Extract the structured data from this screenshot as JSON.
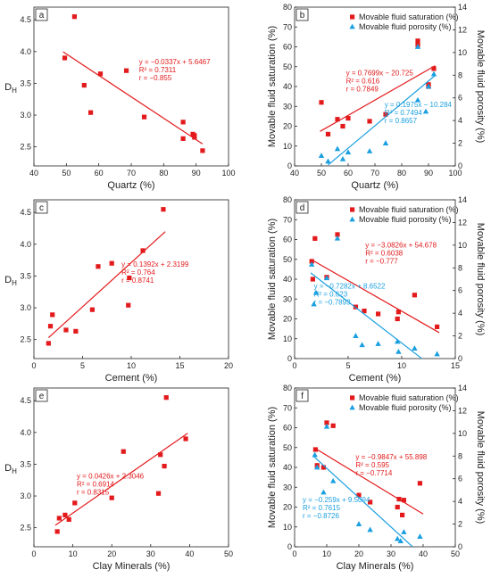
{
  "colors": {
    "red": "#e31a1c",
    "blue": "#1a9fe0"
  },
  "chart_data": [
    {
      "id": "a",
      "type": "scatter",
      "panel_label": "a",
      "xlabel": "Quartz (%)",
      "ylabel": "D",
      "ylabel_sub": "H",
      "xlim": [
        40,
        100
      ],
      "ylim": [
        2.2,
        4.7
      ],
      "xticks": [
        40,
        50,
        60,
        70,
        80,
        90,
        100
      ],
      "yticks": [
        2.5,
        3.0,
        3.5,
        4.0,
        4.5
      ],
      "series": [
        {
          "marker": "square",
          "color": "#e31a1c",
          "points": [
            [
              49.5,
              3.9
            ],
            [
              52.5,
              4.55
            ],
            [
              55.5,
              3.47
            ],
            [
              57.5,
              3.04
            ],
            [
              60.5,
              3.65
            ],
            [
              68.5,
              3.7
            ],
            [
              74,
              2.97
            ],
            [
              86,
              2.89
            ],
            [
              86,
              2.63
            ],
            [
              89,
              2.7
            ],
            [
              89.5,
              2.68
            ],
            [
              89.5,
              2.65
            ],
            [
              92,
              2.44
            ]
          ],
          "fit": {
            "x": [
              49,
              92
            ],
            "slope": -0.0337,
            "intercept": 5.6467
          },
          "equation": [
            "y = −0.0337x + 5.6467",
            "R² = 0.7311",
            "r = −0.855"
          ]
        }
      ]
    },
    {
      "id": "b",
      "type": "scatter",
      "panel_label": "b",
      "xlabel": "Quartz (%)",
      "ylabel": "Movable fluid saturation (%)",
      "y2label": "Movable fluid porosity (%)",
      "xlim": [
        40,
        100
      ],
      "ylim": [
        0,
        80
      ],
      "y2lim": [
        0,
        14
      ],
      "xticks": [
        40,
        50,
        60,
        70,
        80,
        90,
        100
      ],
      "yticks": [
        0,
        10,
        20,
        30,
        40,
        50,
        60,
        70,
        80
      ],
      "y2ticks": [
        0,
        2,
        4,
        6,
        8,
        10,
        12,
        14
      ],
      "legend": [
        "Movable fluid saturation (%)",
        "Movable fluid porosity (%)"
      ],
      "series": [
        {
          "name": "Movable fluid saturation (%)",
          "marker": "square",
          "color": "#e31a1c",
          "axis": "y",
          "points": [
            [
              50,
              32
            ],
            [
              52.5,
              16
            ],
            [
              56,
              23.5
            ],
            [
              58,
              20
            ],
            [
              60,
              24
            ],
            [
              68,
              22.5
            ],
            [
              74,
              26
            ],
            [
              86,
              63
            ],
            [
              86,
              61
            ],
            [
              90,
              41
            ],
            [
              90,
              40
            ],
            [
              92,
              49
            ]
          ],
          "fit": {
            "x": [
              49.5,
              92.5
            ],
            "slope": 0.7699,
            "intercept": -20.725
          },
          "equation": [
            "y = 0.7699x − 20.725",
            "R² = 0.616",
            "r = 0.7849"
          ]
        },
        {
          "name": "Movable fluid porosity (%)",
          "marker": "triangle",
          "color": "#1a9fe0",
          "axis": "y2",
          "points": [
            [
              50,
              0.9
            ],
            [
              52.5,
              0.4
            ],
            [
              56,
              1.5
            ],
            [
              58,
              0.6
            ],
            [
              60,
              1.2
            ],
            [
              68,
              1.3
            ],
            [
              74,
              2
            ],
            [
              86,
              5.8
            ],
            [
              86,
              10.5
            ],
            [
              89,
              4.8
            ],
            [
              90,
              7
            ],
            [
              92,
              8.1
            ]
          ],
          "fit": {
            "x": [
              52.5,
              92.5
            ],
            "slope": 0.1975,
            "intercept": -10.284
          },
          "equation": [
            "y = 0.1975x − 10.284",
            "R² = 0.7494",
            "r = 0.8657"
          ]
        }
      ]
    },
    {
      "id": "c",
      "type": "scatter",
      "panel_label": "c",
      "xlabel": "Cement (%)",
      "ylabel": "D",
      "ylabel_sub": "H",
      "xlim": [
        0,
        20
      ],
      "ylim": [
        2.2,
        4.7
      ],
      "xticks": [
        0,
        5,
        10,
        15,
        20
      ],
      "yticks": [
        2.5,
        3.0,
        3.5,
        4.0,
        4.5
      ],
      "series": [
        {
          "marker": "square",
          "color": "#e31a1c",
          "points": [
            [
              1.5,
              2.44
            ],
            [
              1.7,
              2.71
            ],
            [
              1.9,
              2.89
            ],
            [
              3.3,
              2.65
            ],
            [
              4.3,
              2.63
            ],
            [
              6,
              2.97
            ],
            [
              6.6,
              3.65
            ],
            [
              8,
              3.7
            ],
            [
              9.7,
              3.04
            ],
            [
              9.8,
              3.47
            ],
            [
              11.2,
              3.9
            ],
            [
              13.3,
              4.55
            ]
          ],
          "fit": {
            "x": [
              1.5,
              13.5
            ],
            "slope": 0.1392,
            "intercept": 2.3199
          },
          "equation": [
            "y = 0.1392x + 2.3199",
            "R² = 0.764",
            "r = 0.8741"
          ]
        }
      ]
    },
    {
      "id": "d",
      "type": "scatter",
      "panel_label": "d",
      "xlabel": "Cement (%)",
      "ylabel": "Movable fluid saturation (%)",
      "y2label": "Movable fluid porosity (%)",
      "xlim": [
        0,
        15
      ],
      "ylim": [
        0,
        80
      ],
      "y2lim": [
        0,
        14
      ],
      "xticks": [
        0,
        5,
        10,
        15
      ],
      "yticks": [
        0,
        10,
        20,
        30,
        40,
        50,
        60,
        70,
        80
      ],
      "y2ticks": [
        0,
        2,
        4,
        6,
        8,
        10,
        12,
        14
      ],
      "legend": [
        "Movable fluid saturation (%)",
        "Movable fluid porosity (%)"
      ],
      "series": [
        {
          "name": "Movable fluid saturation (%)",
          "marker": "square",
          "color": "#e31a1c",
          "axis": "y",
          "points": [
            [
              1.6,
              49
            ],
            [
              1.7,
              40
            ],
            [
              1.9,
              60.5
            ],
            [
              3,
              41
            ],
            [
              4,
              62.5
            ],
            [
              5.7,
              26
            ],
            [
              6.5,
              24
            ],
            [
              7.8,
              22.5
            ],
            [
              9.6,
              20
            ],
            [
              9.7,
              23.5
            ],
            [
              11.2,
              32
            ],
            [
              13.3,
              16
            ]
          ],
          "fit": {
            "x": [
              1.5,
              13.5
            ],
            "slope": -3.0826,
            "intercept": 54.678
          },
          "equation": [
            "y = −3.0826x + 54.678",
            "R² = 0.6038",
            "r = −0.777"
          ]
        },
        {
          "name": "Movable fluid porosity (%)",
          "marker": "triangle",
          "color": "#1a9fe0",
          "axis": "y2",
          "points": [
            [
              1.6,
              8.3
            ],
            [
              1.8,
              4.8
            ],
            [
              2,
              5.8
            ],
            [
              3,
              7.1
            ],
            [
              4,
              10.6
            ],
            [
              5.7,
              2
            ],
            [
              6.3,
              1.2
            ],
            [
              7.8,
              1.3
            ],
            [
              9.6,
              1.5
            ],
            [
              9.7,
              0.6
            ],
            [
              11.2,
              0.9
            ],
            [
              13.3,
              0.4
            ]
          ],
          "fit": {
            "x": [
              1.5,
              11.9
            ],
            "slope": -0.7282,
            "intercept": 8.6522
          },
          "equation": [
            "y = −0.7282x + 8.6522",
            "R² = 0.623",
            "r = −0.7893"
          ]
        }
      ]
    },
    {
      "id": "e",
      "type": "scatter",
      "panel_label": "e",
      "xlabel": "Clay Minerals (%)",
      "ylabel": "D",
      "ylabel_sub": "H",
      "xlim": [
        0,
        50
      ],
      "ylim": [
        2.2,
        4.7
      ],
      "xticks": [
        0,
        10,
        20,
        30,
        40,
        50
      ],
      "yticks": [
        2.5,
        3.0,
        3.5,
        4.0,
        4.5
      ],
      "series": [
        {
          "marker": "square",
          "color": "#e31a1c",
          "points": [
            [
              6,
              2.44
            ],
            [
              6.5,
              2.65
            ],
            [
              8,
              2.7
            ],
            [
              9,
              2.63
            ],
            [
              10.5,
              2.89
            ],
            [
              20,
              2.97
            ],
            [
              23,
              3.7
            ],
            [
              32,
              3.04
            ],
            [
              32.5,
              3.65
            ],
            [
              33.5,
              3.47
            ],
            [
              34,
              4.55
            ],
            [
              39,
              3.9
            ]
          ],
          "fit": {
            "x": [
              5.5,
              39.5
            ],
            "slope": 0.0426,
            "intercept": 2.3046
          },
          "equation": [
            "y = 0.0426x + 2.3046",
            "R² = 0.6914",
            "r = 0.8315"
          ]
        }
      ]
    },
    {
      "id": "f",
      "type": "scatter",
      "panel_label": "f",
      "xlabel": "Clay Minerals (%)",
      "ylabel": "Movable fluid saturation (%)",
      "y2label": "Movable fluid porosity (%)",
      "xlim": [
        0,
        50
      ],
      "ylim": [
        0,
        80
      ],
      "y2lim": [
        0,
        14
      ],
      "xticks": [
        0,
        10,
        20,
        30,
        40,
        50
      ],
      "yticks": [
        0,
        10,
        20,
        30,
        40,
        50,
        60,
        70,
        80
      ],
      "y2ticks": [
        0,
        2,
        4,
        6,
        8,
        10,
        12,
        14
      ],
      "legend": [
        "Movable fluid saturation (%)",
        "Movable fluid porosity (%)"
      ],
      "series": [
        {
          "name": "Movable fluid saturation (%)",
          "marker": "square",
          "color": "#e31a1c",
          "axis": "y",
          "points": [
            [
              6.5,
              49
            ],
            [
              7,
              41
            ],
            [
              9,
              40
            ],
            [
              10,
              62.5
            ],
            [
              12,
              61
            ],
            [
              20,
              26
            ],
            [
              23.5,
              22.5
            ],
            [
              32,
              20
            ],
            [
              32.5,
              24
            ],
            [
              33.5,
              16
            ],
            [
              34,
              23.5
            ],
            [
              39,
              32
            ]
          ],
          "fit": {
            "x": [
              6,
              40
            ],
            "slope": -0.9847,
            "intercept": 55.898
          },
          "equation": [
            "y = −0.9847x + 55.898",
            "R² = 0.595",
            "r = −0.7714"
          ]
        },
        {
          "name": "Movable fluid porosity (%)",
          "marker": "triangle",
          "color": "#1a9fe0",
          "axis": "y2",
          "points": [
            [
              6.3,
              8.1
            ],
            [
              7,
              7
            ],
            [
              9,
              4.8
            ],
            [
              10,
              10.6
            ],
            [
              12,
              5.8
            ],
            [
              20,
              2
            ],
            [
              23.5,
              1.5
            ],
            [
              32,
              0.7
            ],
            [
              33,
              0.5
            ],
            [
              34,
              1.3
            ],
            [
              39,
              0.9
            ]
          ],
          "fit": {
            "x": [
              6,
              36.7
            ],
            "slope": -0.259,
            "intercept": 9.5094
          },
          "equation": [
            "y = −0.259x + 9.5094",
            "R² = 0.7615",
            "r = −0.8726"
          ]
        }
      ]
    }
  ]
}
